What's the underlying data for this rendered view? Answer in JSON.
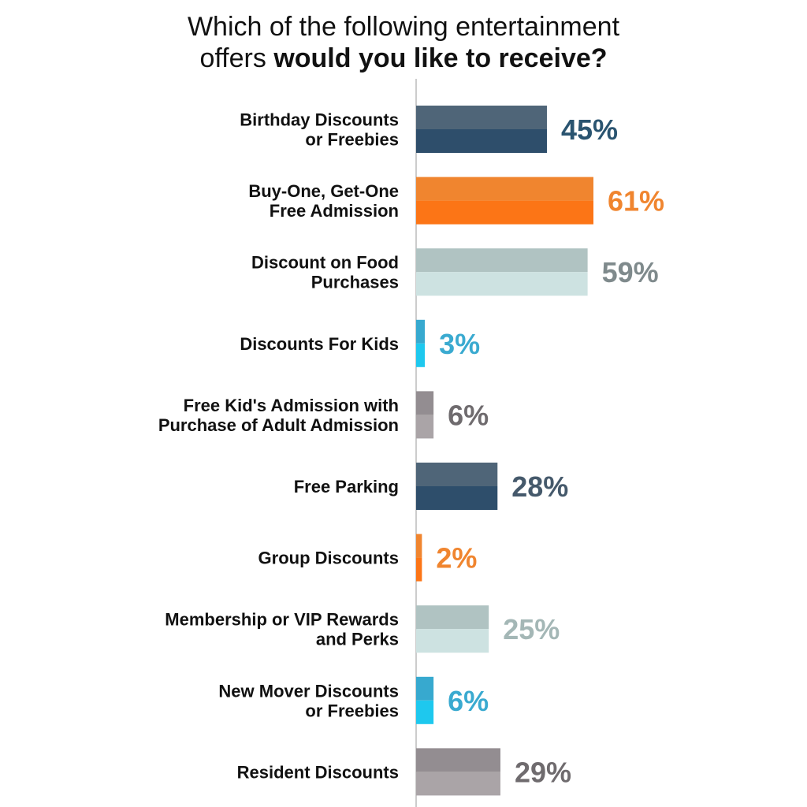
{
  "chart_data": {
    "type": "bar",
    "orientation": "horizontal",
    "title_line1": "Which of the following entertainment",
    "title_line2_plain": "offers ",
    "title_line2_bold": "would you like to receive?",
    "xlim": [
      0,
      61
    ],
    "categories": [
      [
        "Birthday Discounts",
        "or Freebies"
      ],
      [
        "Buy-One, Get-One",
        "Free Admission"
      ],
      [
        "Discount on Food",
        "Purchases"
      ],
      [
        "Discounts For Kids"
      ],
      [
        "Free Kid's Admission with",
        "Purchase of Adult Admission"
      ],
      [
        "Free Parking"
      ],
      [
        "Group Discounts"
      ],
      [
        "Membership or VIP Rewards",
        "and Perks"
      ],
      [
        "New Mover Discounts",
        "or Freebies"
      ],
      [
        "Resident Discounts"
      ]
    ],
    "values": [
      45,
      61,
      59,
      3,
      6,
      28,
      2,
      25,
      6,
      29
    ],
    "value_labels": [
      "45%",
      "61%",
      "59%",
      "3%",
      "6%",
      "28%",
      "2%",
      "25%",
      "6%",
      "29%"
    ],
    "bar_colors": [
      [
        "#4f6578",
        "#2e4e6b"
      ],
      [
        "#f0852f",
        "#fc7516"
      ],
      [
        "#b0c3c2",
        "#cde2e1"
      ],
      [
        "#37a9cf",
        "#1ec8ee"
      ],
      [
        "#938d91",
        "#aaa4a7"
      ],
      [
        "#4f6578",
        "#2e4e6b"
      ],
      [
        "#f0852f",
        "#fc7516"
      ],
      [
        "#b0c3c2",
        "#cde2e1"
      ],
      [
        "#37a9cf",
        "#1ec8ee"
      ],
      [
        "#938d91",
        "#aaa4a7"
      ]
    ],
    "label_colors": [
      "#2a5470",
      "#f0852f",
      "#7f8a8c",
      "#3aaad0",
      "#6f6b6e",
      "#45596b",
      "#f0852f",
      "#a4b7b6",
      "#3aaad0",
      "#6f6b6e"
    ],
    "axis_color": "#cccccc"
  }
}
